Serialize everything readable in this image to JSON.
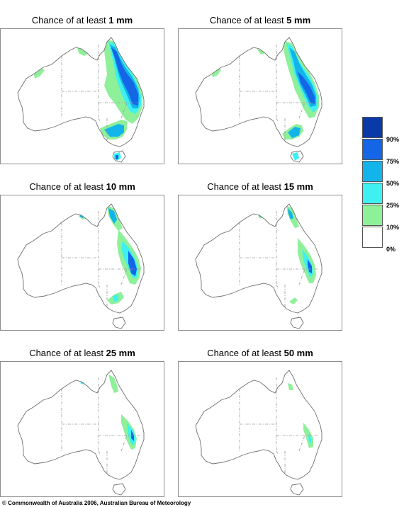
{
  "panels": [
    {
      "prefix": "Chance of at least ",
      "amount": "1 mm",
      "level": 1
    },
    {
      "prefix": "Chance of at least ",
      "amount": "5 mm",
      "level": 2
    },
    {
      "prefix": "Chance of at least ",
      "amount": "10 mm",
      "level": 3
    },
    {
      "prefix": "Chance of at least ",
      "amount": "15 mm",
      "level": 4
    },
    {
      "prefix": "Chance of at least ",
      "amount": "25 mm",
      "level": 5
    },
    {
      "prefix": "Chance of at least ",
      "amount": "50 mm",
      "level": 6
    }
  ],
  "legend": {
    "labels": [
      "90%",
      "75%",
      "50%",
      "25%",
      "10%",
      "0%"
    ],
    "colors": [
      "#0a3aa8",
      "#1466e6",
      "#12b4ea",
      "#3ef0f0",
      "#8ff09a",
      "#ffffff"
    ]
  },
  "footer": {
    "text": "© Commonwealth of Australia 2006, Australian Bureau of Meteorology"
  },
  "colors": {
    "coast": "#6e6e6e",
    "border": "#8c8c8c"
  }
}
